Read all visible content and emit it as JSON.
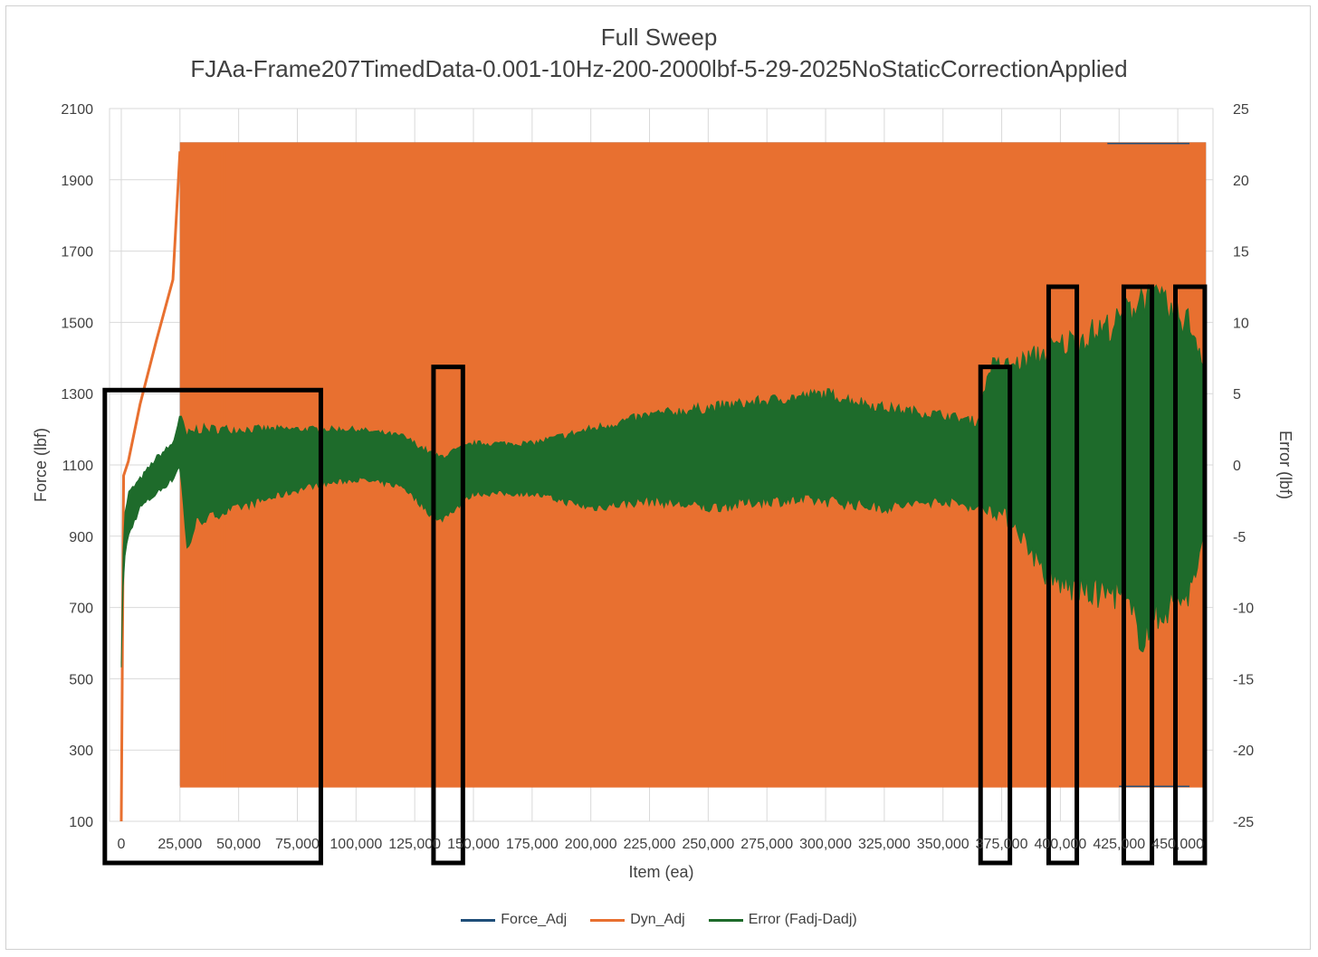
{
  "chart_data": {
    "type": "line",
    "title": "Full Sweep",
    "subtitle": "FJAa-Frame207TimedData-0.001-10Hz-200-2000lbf-5-29-2025NoStaticCorrectionApplied",
    "xlabel": "Item (ea)",
    "ylabel": "Force (lbf)",
    "y2label": "Error (lbf)",
    "xlim": [
      -5000,
      465000
    ],
    "ylim": [
      100,
      2100
    ],
    "y2lim": [
      -25,
      25
    ],
    "x_ticks": [
      "0",
      "25,000",
      "50,000",
      "75,000",
      "100,000",
      "125,000",
      "150,000",
      "175,000",
      "200,000",
      "225,000",
      "250,000",
      "275,000",
      "300,000",
      "325,000",
      "350,000",
      "375,000",
      "400,000",
      "425,000",
      "450,000"
    ],
    "x_tick_values": [
      0,
      25000,
      50000,
      75000,
      100000,
      125000,
      150000,
      175000,
      200000,
      225000,
      250000,
      275000,
      300000,
      325000,
      350000,
      375000,
      400000,
      425000,
      450000
    ],
    "y_ticks": [
      "100",
      "300",
      "500",
      "700",
      "900",
      "1100",
      "1300",
      "1500",
      "1700",
      "1900",
      "2100"
    ],
    "y_tick_values": [
      100,
      300,
      500,
      700,
      900,
      1100,
      1300,
      1500,
      1700,
      1900,
      2100
    ],
    "y2_ticks": [
      "-25",
      "-20",
      "-15",
      "-10",
      "-5",
      "0",
      "5",
      "10",
      "15",
      "20",
      "25"
    ],
    "y2_tick_values": [
      -25,
      -20,
      -15,
      -10,
      -5,
      0,
      5,
      10,
      15,
      20,
      25
    ],
    "grid": true,
    "legend_position": "bottom",
    "series": [
      {
        "name": "Force_Adj",
        "color": "#1f4e79",
        "axis": "primary",
        "ramp": {
          "x": [
            0,
            1000,
            3000,
            8000,
            15000,
            22000,
            25000
          ],
          "y": [
            100,
            1070,
            1110,
            1270,
            1450,
            1620,
            1980
          ]
        },
        "band": {
          "x": [
            25000,
            462000
          ],
          "min": 200,
          "max": 2005
        }
      },
      {
        "name": "Dyn_Adj",
        "color": "#e87030",
        "axis": "primary",
        "ramp": {
          "x": [
            0,
            1000,
            3000,
            8000,
            15000,
            22000,
            25000
          ],
          "y": [
            100,
            1070,
            1110,
            1270,
            1450,
            1620,
            1980
          ]
        },
        "band": {
          "x": [
            25000,
            462000
          ],
          "min": 195,
          "max": 2005
        }
      },
      {
        "name": "Error (Fadj-Dadj)",
        "color": "#1e6b2b",
        "axis": "secondary",
        "x": [
          0,
          1000,
          3000,
          8000,
          15000,
          22000,
          25000,
          28000,
          32000,
          40000,
          60000,
          80000,
          100000,
          120000,
          135000,
          150000,
          175000,
          200000,
          225000,
          250000,
          275000,
          300000,
          325000,
          350000,
          365000,
          370000,
          380000,
          395000,
          410000,
          425000,
          435000,
          445000,
          455000,
          462000
        ],
        "upper": [
          -14,
          -4,
          -2,
          -1,
          0.5,
          1.5,
          3.5,
          2,
          2.5,
          2.5,
          2.5,
          2.5,
          2.5,
          2,
          0.5,
          1.5,
          1.5,
          2.5,
          3.5,
          4,
          4.5,
          5,
          4,
          3.5,
          3,
          7,
          7,
          8,
          9,
          10,
          12,
          11,
          10,
          7
        ],
        "lower": [
          -14,
          -7,
          -5,
          -3,
          -2,
          -1,
          0,
          -6,
          -4,
          -3.5,
          -2.5,
          -1.5,
          -1,
          -1.5,
          -4,
          -2,
          -2,
          -3,
          -2.5,
          -3,
          -2.5,
          -2.5,
          -3,
          -2.5,
          -3,
          -3,
          -4,
          -8,
          -9,
          -9,
          -12,
          -10,
          -9,
          -5
        ]
      }
    ],
    "annotations": [
      {
        "type": "box",
        "x": [
          -7000,
          85000
        ],
        "y": [
          1310,
          -20
        ]
      },
      {
        "type": "box",
        "x": [
          133000,
          145500
        ],
        "y": [
          1375,
          -20
        ]
      },
      {
        "type": "box",
        "x": [
          366000,
          378500
        ],
        "y": [
          1375,
          -20
        ]
      },
      {
        "type": "box",
        "x": [
          395000,
          407000
        ],
        "y": [
          1600,
          -20
        ]
      },
      {
        "type": "box",
        "x": [
          427000,
          439000
        ],
        "y": [
          1600,
          -20
        ]
      },
      {
        "type": "box",
        "x": [
          449000,
          461500
        ],
        "y": [
          1600,
          -20
        ]
      }
    ]
  }
}
